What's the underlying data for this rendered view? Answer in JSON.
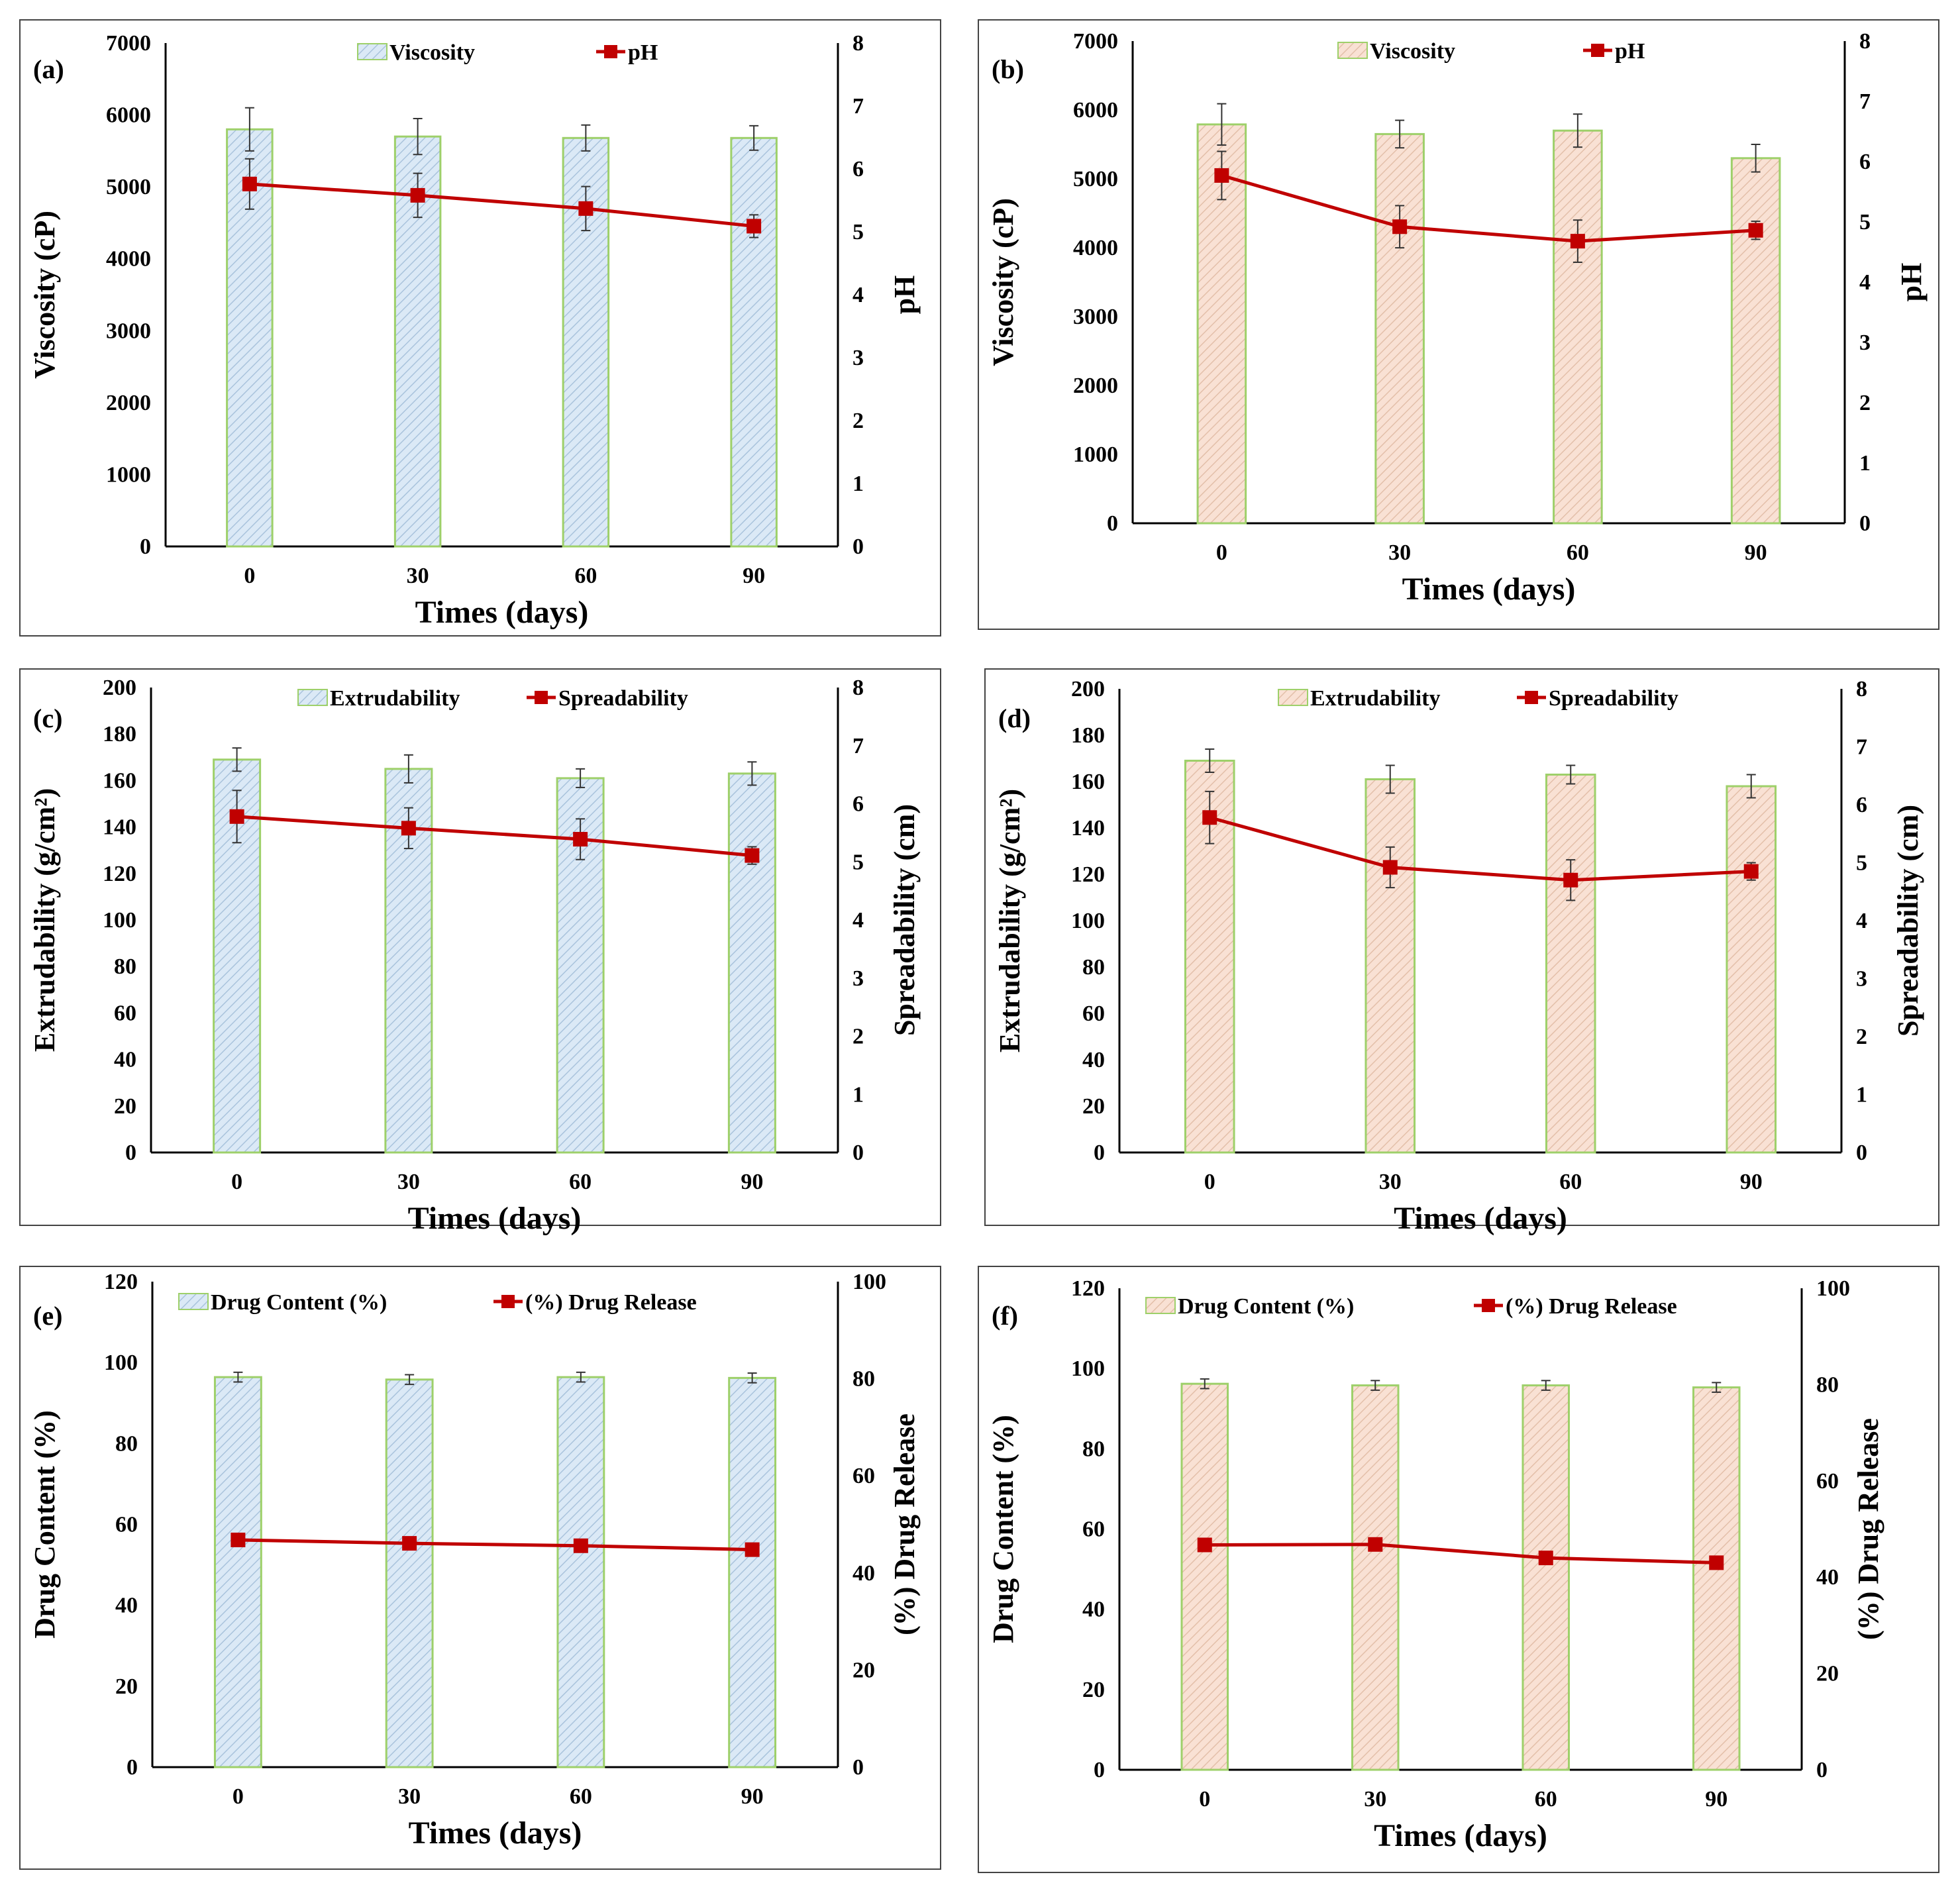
{
  "chart_data": [
    {
      "id": "a",
      "letter": "(a)",
      "type": "bar+line",
      "xlabel": "Times (days)",
      "ylabel": "Viscosity (cP)",
      "y2label": "pH",
      "categories": [
        "0",
        "30",
        "60",
        "90"
      ],
      "ylim": [
        0,
        7000
      ],
      "yticks": [
        0,
        1000,
        2000,
        3000,
        4000,
        5000,
        6000,
        7000
      ],
      "y2lim": [
        0,
        8
      ],
      "y2ticks": [
        0,
        1,
        2,
        3,
        4,
        5,
        6,
        7,
        8
      ],
      "bar_series": {
        "name": "Viscosity",
        "values": [
          5800,
          5700,
          5680,
          5680
        ],
        "errors": [
          300,
          250,
          180,
          170
        ],
        "color": "#dbe9f6"
      },
      "line_series": {
        "name": "pH",
        "values": [
          5.76,
          5.58,
          5.37,
          5.09
        ],
        "errors": [
          0.4,
          0.35,
          0.35,
          0.18
        ],
        "color": "#c00000"
      }
    },
    {
      "id": "b",
      "letter": "(b)",
      "type": "bar+line",
      "xlabel": "Times (days)",
      "ylabel": "Viscosity (cP)",
      "y2label": "pH",
      "categories": [
        "0",
        "30",
        "60",
        "90"
      ],
      "ylim": [
        0,
        7000
      ],
      "yticks": [
        0,
        1000,
        2000,
        3000,
        4000,
        5000,
        6000,
        7000
      ],
      "y2lim": [
        0,
        8
      ],
      "y2ticks": [
        0,
        1,
        2,
        3,
        4,
        5,
        6,
        7,
        8
      ],
      "bar_series": {
        "name": "Viscosity",
        "values": [
          5790,
          5650,
          5700,
          5300
        ],
        "errors": [
          300,
          200,
          240,
          200
        ],
        "color": "#f9e1d4"
      },
      "line_series": {
        "name": "pH",
        "values": [
          5.77,
          4.92,
          4.68,
          4.86
        ],
        "errors": [
          0.4,
          0.35,
          0.35,
          0.15
        ],
        "color": "#c00000"
      }
    },
    {
      "id": "c",
      "letter": "(c)",
      "type": "bar+line",
      "xlabel": "Times (days)",
      "ylabel": "Extrudability (g/cm²)",
      "y2label": "Spreadability (cm)",
      "categories": [
        "0",
        "30",
        "60",
        "90"
      ],
      "ylim": [
        0,
        200
      ],
      "yticks": [
        0,
        20,
        40,
        60,
        80,
        100,
        120,
        140,
        160,
        180,
        200
      ],
      "y2lim": [
        0,
        8
      ],
      "y2ticks": [
        0,
        1,
        2,
        3,
        4,
        5,
        6,
        7,
        8
      ],
      "bar_series": {
        "name": "Extrudability",
        "values": [
          169,
          165,
          161,
          163
        ],
        "errors": [
          5,
          6,
          4,
          5
        ],
        "color": "#dbe9f6"
      },
      "line_series": {
        "name": "Spreadability",
        "values": [
          5.78,
          5.58,
          5.39,
          5.11
        ],
        "errors": [
          0.45,
          0.35,
          0.35,
          0.15
        ],
        "color": "#c00000"
      }
    },
    {
      "id": "d",
      "letter": "(d)",
      "type": "bar+line",
      "xlabel": "Times (days)",
      "ylabel": "Extrudability (g/cm²)",
      "y2label": "Spreadability (cm)",
      "categories": [
        "0",
        "30",
        "60",
        "90"
      ],
      "ylim": [
        0,
        200
      ],
      "yticks": [
        0,
        20,
        40,
        60,
        80,
        100,
        120,
        140,
        160,
        180,
        200
      ],
      "y2lim": [
        0,
        8
      ],
      "y2ticks": [
        0,
        1,
        2,
        3,
        4,
        5,
        6,
        7,
        8
      ],
      "bar_series": {
        "name": "Extrudability",
        "values": [
          169,
          161,
          163,
          158
        ],
        "errors": [
          5,
          6,
          4,
          5
        ],
        "color": "#f9e1d4"
      },
      "line_series": {
        "name": "Spreadability",
        "values": [
          5.78,
          4.92,
          4.7,
          4.85
        ],
        "errors": [
          0.45,
          0.35,
          0.35,
          0.15
        ],
        "color": "#c00000"
      }
    },
    {
      "id": "e",
      "letter": "(e)",
      "type": "bar+line",
      "xlabel": "Times (days)",
      "ylabel": "Drug Content (%)",
      "y2label": "(%) Drug Release",
      "categories": [
        "0",
        "30",
        "60",
        "90"
      ],
      "ylim": [
        0,
        120
      ],
      "yticks": [
        0,
        20,
        40,
        60,
        80,
        100,
        120
      ],
      "y2lim": [
        0,
        100
      ],
      "y2ticks": [
        0,
        20,
        40,
        60,
        80,
        100
      ],
      "bar_series": {
        "name": "Drug Content (%)",
        "values": [
          96.4,
          95.8,
          96.4,
          96.2
        ],
        "errors": [
          1.2,
          1.2,
          1.2,
          1.2
        ],
        "color": "#dbe9f6"
      },
      "line_series": {
        "name": "(%) Drug Release",
        "values": [
          46.8,
          46.1,
          45.6,
          44.8
        ],
        "errors": [
          1.2,
          1.2,
          1.2,
          1.2
        ],
        "color": "#c00000"
      }
    },
    {
      "id": "f",
      "letter": "(f)",
      "type": "bar+line",
      "xlabel": "Times (days)",
      "ylabel": "Drug Content (%)",
      "y2label": "(%) Drug Release",
      "categories": [
        "0",
        "30",
        "60",
        "90"
      ],
      "ylim": [
        0,
        120
      ],
      "yticks": [
        0,
        20,
        40,
        60,
        80,
        100,
        120
      ],
      "y2lim": [
        0,
        100
      ],
      "y2ticks": [
        0,
        20,
        40,
        60,
        80,
        100
      ],
      "bar_series": {
        "name": "Drug Content (%)",
        "values": [
          96.2,
          95.8,
          95.8,
          95.3
        ],
        "errors": [
          1.2,
          1.2,
          1.2,
          1.2
        ],
        "color": "#f9e1d4"
      },
      "line_series": {
        "name": "(%) Drug Release",
        "values": [
          46.7,
          46.8,
          44,
          43
        ],
        "errors": [
          1.2,
          1.2,
          1.2,
          1.2
        ],
        "color": "#c00000"
      }
    }
  ]
}
